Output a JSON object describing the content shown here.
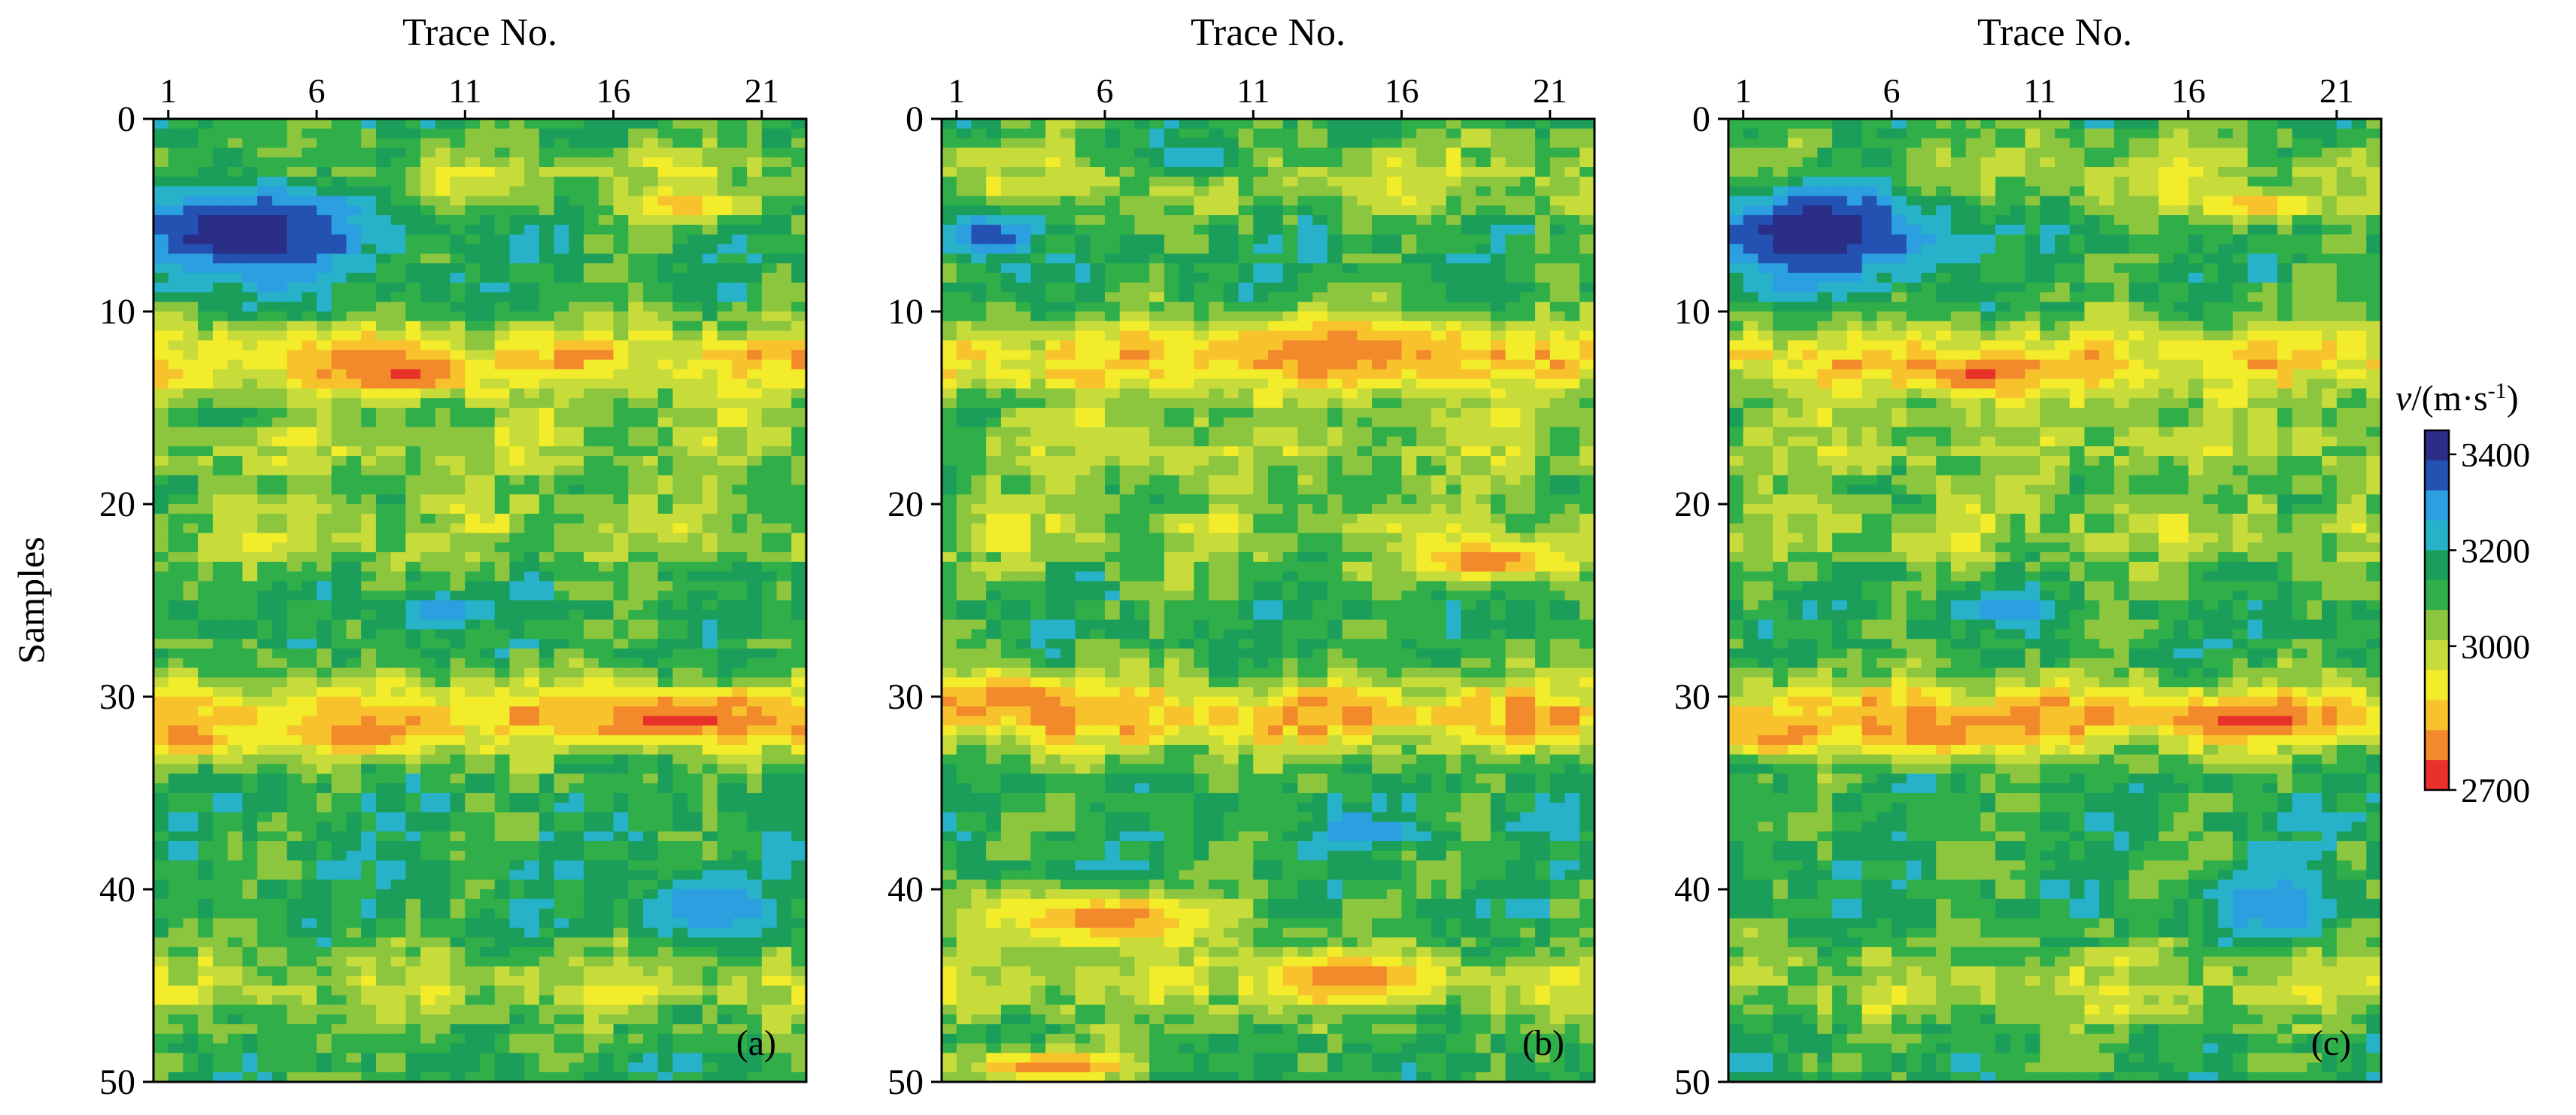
{
  "chart_data": [
    {
      "type": "heatmap",
      "panel_label": "(a)",
      "xlabel": "Trace No.",
      "ylabel": "Samples",
      "x_ticks": [
        1,
        6,
        11,
        16,
        21
      ],
      "y_ticks": [
        0,
        10,
        20,
        30,
        40,
        50
      ],
      "xlim": [
        0.5,
        22.5
      ],
      "ylim": [
        0,
        50
      ],
      "color_range": [
        2700,
        3450
      ],
      "anomalies": [
        {
          "trace": 3.5,
          "sample": 5.8,
          "spread_trace": 4.2,
          "spread_sample": 2.8,
          "value": 3440
        },
        {
          "trace": 9,
          "sample": 13.3,
          "spread_trace": 2.5,
          "spread_sample": 1.0,
          "value": 2760
        },
        {
          "trace": 18,
          "sample": 31.2,
          "spread_trace": 2.8,
          "spread_sample": 1.0,
          "value": 2740
        },
        {
          "trace": 2,
          "sample": 32.3,
          "spread_trace": 1.5,
          "spread_sample": 0.8,
          "value": 2790
        },
        {
          "trace": 7.5,
          "sample": 32.0,
          "spread_trace": 2.5,
          "spread_sample": 1.0,
          "value": 2790
        },
        {
          "trace": 19,
          "sample": 41.0,
          "spread_trace": 2.2,
          "spread_sample": 1.6,
          "value": 3330
        },
        {
          "trace": 10,
          "sample": 25.5,
          "spread_trace": 1.5,
          "spread_sample": 1.0,
          "value": 3310
        },
        {
          "trace": 18.5,
          "sample": 4.5,
          "spread_trace": 2.2,
          "spread_sample": 0.8,
          "value": 2850
        }
      ]
    },
    {
      "type": "heatmap",
      "panel_label": "(b)",
      "xlabel": "Trace No.",
      "ylabel": "",
      "x_ticks": [
        1,
        6,
        11,
        16,
        21
      ],
      "y_ticks": [
        0,
        10,
        20,
        30,
        40,
        50
      ],
      "xlim": [
        0.5,
        22.5
      ],
      "ylim": [
        0,
        50
      ],
      "color_range": [
        2700,
        3450
      ],
      "anomalies": [
        {
          "trace": 2,
          "sample": 6.0,
          "spread_trace": 1.6,
          "spread_sample": 1.2,
          "value": 3380
        },
        {
          "trace": 9,
          "sample": 2.0,
          "spread_trace": 2.0,
          "spread_sample": 1.2,
          "value": 3260
        },
        {
          "trace": 14,
          "sample": 12.0,
          "spread_trace": 5.0,
          "spread_sample": 1.6,
          "value": 2800
        },
        {
          "trace": 19,
          "sample": 23.0,
          "spread_trace": 2.5,
          "spread_sample": 1.0,
          "value": 2780
        },
        {
          "trace": 3,
          "sample": 30.0,
          "spread_trace": 2.5,
          "spread_sample": 1.2,
          "value": 2780
        },
        {
          "trace": 6,
          "sample": 41.5,
          "spread_trace": 4.0,
          "spread_sample": 1.5,
          "value": 2790
        },
        {
          "trace": 14,
          "sample": 44.5,
          "spread_trace": 3.0,
          "spread_sample": 1.2,
          "value": 2790
        },
        {
          "trace": 4,
          "sample": 49.2,
          "spread_trace": 3.0,
          "spread_sample": 0.8,
          "value": 2760
        },
        {
          "trace": 15,
          "sample": 37.0,
          "spread_trace": 2.0,
          "spread_sample": 0.8,
          "value": 3320
        }
      ]
    },
    {
      "type": "heatmap",
      "panel_label": "(c)",
      "xlabel": "Trace No.",
      "ylabel": "",
      "x_ticks": [
        1,
        6,
        11,
        16,
        21
      ],
      "y_ticks": [
        0,
        10,
        20,
        30,
        40,
        50
      ],
      "xlim": [
        0.5,
        22.5
      ],
      "ylim": [
        0,
        50
      ],
      "color_range": [
        2700,
        3450
      ],
      "anomalies": [
        {
          "trace": 3.5,
          "sample": 5.8,
          "spread_trace": 4.2,
          "spread_sample": 2.8,
          "value": 3440
        },
        {
          "trace": 9,
          "sample": 13.3,
          "spread_trace": 2.5,
          "spread_sample": 1.0,
          "value": 2760
        },
        {
          "trace": 18,
          "sample": 31.2,
          "spread_trace": 2.8,
          "spread_sample": 1.0,
          "value": 2740
        },
        {
          "trace": 2,
          "sample": 32.3,
          "spread_trace": 1.5,
          "spread_sample": 0.8,
          "value": 2790
        },
        {
          "trace": 7.5,
          "sample": 32.0,
          "spread_trace": 2.5,
          "spread_sample": 1.0,
          "value": 2790
        },
        {
          "trace": 19,
          "sample": 41.0,
          "spread_trace": 2.2,
          "spread_sample": 1.6,
          "value": 3330
        },
        {
          "trace": 10,
          "sample": 25.5,
          "spread_trace": 1.5,
          "spread_sample": 1.0,
          "value": 3310
        },
        {
          "trace": 18.5,
          "sample": 4.5,
          "spread_trace": 2.2,
          "spread_sample": 0.8,
          "value": 2850
        }
      ]
    }
  ],
  "colorbar": {
    "title_italic": "v",
    "title_rest": "/(m·s",
    "title_sup": "-1",
    "title_close": ")",
    "ticks": [
      3400,
      3200,
      3000,
      2700
    ],
    "range": [
      2700,
      3450
    ],
    "colors": [
      "#e8312a",
      "#f28a2c",
      "#f7c22b",
      "#f2ec2a",
      "#c7dc3a",
      "#8cc63f",
      "#2fae49",
      "#1a9e5a",
      "#27b2c9",
      "#2b9fe0",
      "#2352b3",
      "#2b2e86"
    ]
  }
}
